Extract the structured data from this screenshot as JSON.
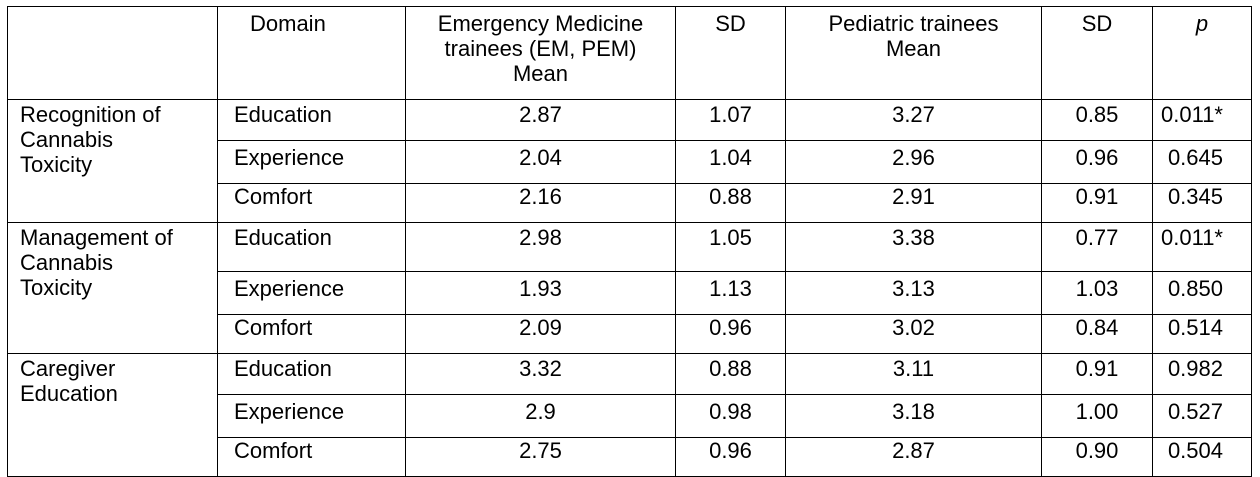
{
  "table": {
    "headers": {
      "blank": "",
      "domain": "Domain",
      "em_mean_line1": "Emergency Medicine",
      "em_mean_line2": "trainees (EM, PEM)",
      "em_mean_line3": "Mean",
      "em_sd": "SD",
      "ped_mean_line1": "Pediatric trainees",
      "ped_mean_line2": "Mean",
      "ped_sd": "SD",
      "p": "p"
    },
    "groups": [
      {
        "label_line1": "Recognition of",
        "label_line2": "Cannabis",
        "label_line3": "Toxicity",
        "rows": [
          {
            "domain": "Education",
            "em_mean": "2.87",
            "em_sd": "1.07",
            "ped_mean": "3.27",
            "ped_sd": "0.85",
            "p": "0.011*"
          },
          {
            "domain": "Experience",
            "em_mean": "2.04",
            "em_sd": "1.04",
            "ped_mean": "2.96",
            "ped_sd": "0.96",
            "p": "0.645"
          },
          {
            "domain": "Comfort",
            "em_mean": "2.16",
            "em_sd": "0.88",
            "ped_mean": "2.91",
            "ped_sd": "0.91",
            "p": "0.345"
          }
        ]
      },
      {
        "label_line1": "Management of",
        "label_line2": "Cannabis",
        "label_line3": "Toxicity",
        "rows": [
          {
            "domain": "Education",
            "em_mean": "2.98",
            "em_sd": "1.05",
            "ped_mean": "3.38",
            "ped_sd": "0.77",
            "p": "0.011*"
          },
          {
            "domain": "Experience",
            "em_mean": "1.93",
            "em_sd": "1.13",
            "ped_mean": "3.13",
            "ped_sd": "1.03",
            "p": "0.850"
          },
          {
            "domain": "Comfort",
            "em_mean": "2.09",
            "em_sd": "0.96",
            "ped_mean": "3.02",
            "ped_sd": "0.84",
            "p": "0.514"
          }
        ]
      },
      {
        "label_line1": "Caregiver",
        "label_line2": "Education",
        "label_line3": "",
        "rows": [
          {
            "domain": "Education",
            "em_mean": "3.32",
            "em_sd": "0.88",
            "ped_mean": "3.11",
            "ped_sd": "0.91",
            "p": "0.982"
          },
          {
            "domain": "Experience",
            "em_mean": "2.9",
            "em_sd": "0.98",
            "ped_mean": "3.18",
            "ped_sd": "1.00",
            "p": "0.527"
          },
          {
            "domain": "Comfort",
            "em_mean": "2.75",
            "em_sd": "0.96",
            "ped_mean": "2.87",
            "ped_sd": "0.90",
            "p": "0.504"
          }
        ]
      }
    ]
  }
}
